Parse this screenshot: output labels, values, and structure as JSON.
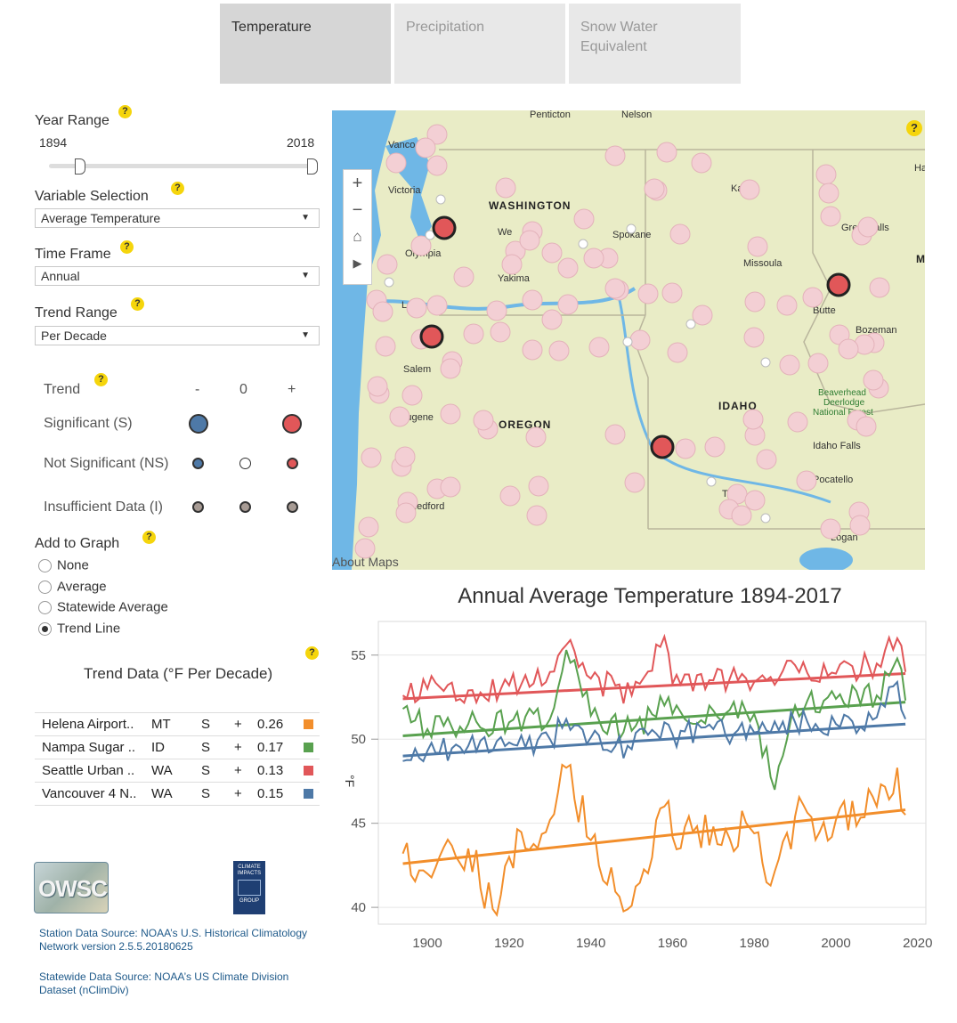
{
  "tabs": [
    {
      "label": "Temperature",
      "active": true
    },
    {
      "label": "Precipitation",
      "active": false
    },
    {
      "label": "Snow Water Equivalent",
      "active": false
    }
  ],
  "controls": {
    "year_range_label": "Year Range",
    "year_start": "1894",
    "year_end": "2018",
    "variable_label": "Variable Selection",
    "variable_value": "Average Temperature",
    "timeframe_label": "Time Frame",
    "timeframe_value": "Annual",
    "trend_range_label": "Trend Range",
    "trend_range_value": "Per Decade",
    "help_glyph": "?"
  },
  "legend": {
    "header": "Trend",
    "cols": [
      "-",
      "0",
      "+"
    ],
    "rows": [
      "Significant (S)",
      "Not Significant (NS)",
      "Insufficient Data (I)"
    ]
  },
  "add_to_graph": {
    "label": "Add to Graph",
    "options": [
      "None",
      "Average",
      "Statewide Average",
      "Trend Line"
    ],
    "selected": "Trend Line"
  },
  "trend_data": {
    "title": "Trend Data (°F Per Decade)",
    "rows": [
      {
        "station": "Helena Airport..",
        "state": "MT",
        "sig": "S",
        "sign": "+",
        "value": "0.26",
        "color": "#f28e2b"
      },
      {
        "station": "Nampa Sugar ..",
        "state": "ID",
        "sig": "S",
        "sign": "+",
        "value": "0.17",
        "color": "#59a14f"
      },
      {
        "station": "Seattle Urban ..",
        "state": "WA",
        "sig": "S",
        "sign": "+",
        "value": "0.13",
        "color": "#e15759"
      },
      {
        "station": "Vancouver 4 N..",
        "state": "WA",
        "sig": "S",
        "sign": "+",
        "value": "0.15",
        "color": "#4e79a7"
      }
    ]
  },
  "logos": {
    "owsc": "OWSC",
    "cig": [
      "CLIMATE",
      "IMPACTS",
      "GROUP"
    ]
  },
  "sources": {
    "station": [
      "Station Data Source: NOAA’s U.S. Historical Climatology",
      "Network version 2.5.5.20180625"
    ],
    "statewide": [
      "Statewide Data Source: NOAA’s US Climate Division",
      "Dataset (nClimDiv)"
    ]
  },
  "map": {
    "attribution": "About Maps",
    "help_glyph": "?",
    "zoom_in": "+",
    "zoom_out": "−",
    "states": [
      "WASHINGTON",
      "OREGON",
      "IDAHO"
    ],
    "places": [
      "Penticton",
      "Nelson",
      "Vanco",
      "Victoria",
      "Olympia",
      "We",
      "Spokane",
      "Yakima",
      "Lo",
      "Salem",
      "Eugene",
      "OREGON",
      "Medford",
      "Missoula",
      "Great Falls",
      "Bozeman",
      "Butte",
      "Beaverhead",
      "Deerlodge",
      "National Forest",
      "Idaho Falls",
      "Pocatello",
      "Logan",
      "Ka",
      "Ha",
      "Tw",
      "M"
    ],
    "colors": {
      "land": "#e9ecc6",
      "water": "#6fb7e6",
      "ns_marker": "#f3cfd4",
      "sig_marker": "#e15759"
    }
  },
  "chart": {
    "title": "Annual Average Temperature 1894-2017",
    "ylabel": "°F"
  },
  "chart_data": {
    "type": "line",
    "title": "Annual Average Temperature 1894-2017",
    "xlabel": "",
    "ylabel": "°F",
    "xlim": [
      1888,
      2022
    ],
    "ylim": [
      39,
      57
    ],
    "x_ticks": [
      1900,
      1920,
      1940,
      1960,
      1980,
      2000,
      2020
    ],
    "y_ticks": [
      40,
      45,
      50,
      55
    ],
    "grid": true,
    "series": [
      {
        "color": "#e15759",
        "trend": [
          52.4,
          53.9
        ],
        "values_by_year": {
          "1894": 52.6,
          "1900": 53.0,
          "1910": 52.9,
          "1920": 53.2,
          "1930": 54.0,
          "1934": 55.6,
          "1940": 53.6,
          "1950": 52.6,
          "1958": 56.1,
          "1960": 53.3,
          "1970": 53.5,
          "1980": 53.4,
          "1990": 54.4,
          "2000": 53.9,
          "2010": 54.5,
          "2015": 56.0,
          "2017": 54.0
        }
      },
      {
        "color": "#59a14f",
        "trend": [
          50.2,
          52.2
        ],
        "values_by_year": {
          "1894": 51.8,
          "1900": 50.6,
          "1910": 50.9,
          "1920": 51.0,
          "1930": 51.2,
          "1934": 55.3,
          "1940": 51.4,
          "1950": 50.5,
          "1958": 52.0,
          "1960": 51.5,
          "1970": 51.7,
          "1980": 51.5,
          "1985": 47.0,
          "1990": 52.0,
          "2000": 52.4,
          "2010": 52.6,
          "2015": 54.8,
          "2017": 52.3
        }
      },
      {
        "color": "#4e79a7",
        "trend": [
          49.0,
          50.9
        ],
        "values_by_year": {
          "1894": 48.7,
          "1900": 49.3,
          "1910": 49.6,
          "1920": 49.8,
          "1930": 50.0,
          "1934": 51.2,
          "1940": 50.1,
          "1950": 49.4,
          "1958": 51.0,
          "1960": 50.3,
          "1970": 50.6,
          "1980": 50.4,
          "1990": 51.0,
          "2000": 50.9,
          "2010": 51.3,
          "2015": 53.4,
          "2017": 51.2
        }
      },
      {
        "color": "#f28e2b",
        "trend": [
          42.6,
          45.8
        ],
        "values_by_year": {
          "1894": 43.2,
          "1900": 42.0,
          "1910": 43.5,
          "1916": 39.9,
          "1920": 43.0,
          "1930": 45.2,
          "1934": 48.3,
          "1940": 44.0,
          "1950": 40.1,
          "1958": 46.0,
          "1960": 44.2,
          "1970": 44.8,
          "1980": 44.4,
          "1984": 41.3,
          "1990": 45.4,
          "2000": 45.2,
          "2010": 46.0,
          "2015": 48.3,
          "2017": 45.5
        }
      }
    ]
  }
}
